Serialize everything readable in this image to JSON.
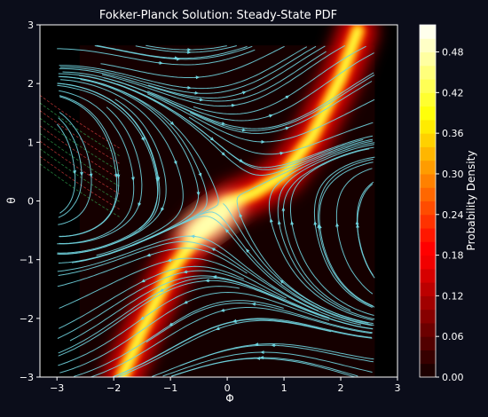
{
  "chart_data": {
    "type": "heatmap",
    "title": "Fokker-Planck Solution: Steady-State PDF",
    "xlabel": "Φ",
    "ylabel": "θ",
    "xlim": [
      -3.3,
      3.0
    ],
    "ylim": [
      -3.0,
      3.0
    ],
    "x_ticks": [
      -3,
      -2,
      -1,
      0,
      1,
      2,
      3
    ],
    "y_ticks": [
      -3,
      -2,
      -1,
      0,
      1,
      2,
      3
    ],
    "x_tick_labels": [
      "−3",
      "−2",
      "−1",
      "0",
      "1",
      "2",
      "3"
    ],
    "y_tick_labels": [
      "−3",
      "−2",
      "−1",
      "0",
      "1",
      "2",
      "3"
    ],
    "heatmap_extent": {
      "x": [
        -2.6,
        2.6
      ],
      "y": [
        -3.0,
        2.65
      ]
    },
    "density_ridge": {
      "description_free_points": [
        {
          "x": -1.85,
          "y": -3.0
        },
        {
          "x": -1.5,
          "y": -2.2
        },
        {
          "x": -1.0,
          "y": -1.2
        },
        {
          "x": -0.5,
          "y": -0.55
        },
        {
          "x": 0.0,
          "y": -0.05
        },
        {
          "x": 0.5,
          "y": 0.15
        },
        {
          "x": 1.0,
          "y": 0.45
        },
        {
          "x": 1.5,
          "y": 1.1
        },
        {
          "x": 2.0,
          "y": 2.1
        },
        {
          "x": 2.3,
          "y": 2.9
        }
      ],
      "peak_value": 0.5,
      "peak_location": {
        "x": -0.3,
        "y": -0.35
      }
    },
    "streamlines": {
      "color": "#6fd3de",
      "domain_x": [
        -3.0,
        2.6
      ],
      "domain_y": [
        -3.0,
        2.65
      ]
    },
    "colorbar": {
      "label": "Probability Density",
      "min": 0.0,
      "max": 0.52,
      "ticks": [
        0.0,
        0.06,
        0.12,
        0.18,
        0.24,
        0.3,
        0.36,
        0.42,
        0.48
      ],
      "tick_labels": [
        "0.00",
        "0.06",
        "0.12",
        "0.18",
        "0.24",
        "0.30",
        "0.36",
        "0.42",
        "0.48"
      ],
      "colormap": "hot",
      "levels": 26
    },
    "grid": false,
    "legend": "none"
  },
  "colors": {
    "figure_background": "#0b0d1a",
    "axes_background": "#000000",
    "text": "#ffffff",
    "streamline": "#6fd3de",
    "stray_streamline_red": "#d23a3a",
    "stray_streamline_green": "#2ea04a"
  }
}
